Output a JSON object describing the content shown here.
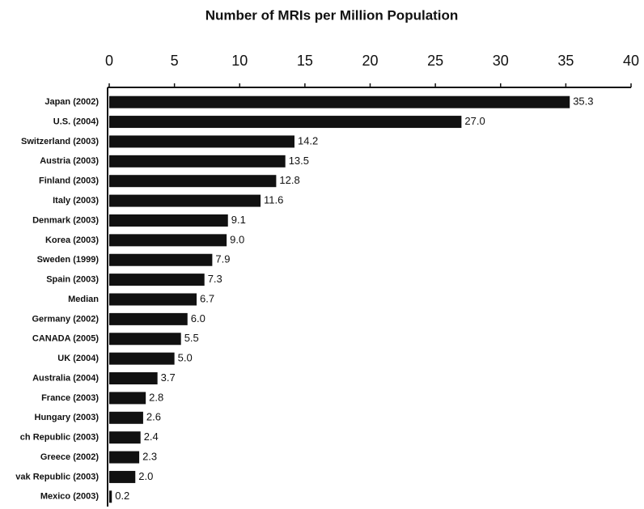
{
  "chart_data": {
    "type": "bar",
    "orientation": "horizontal",
    "title": "Number of MRIs per Million Population",
    "categories": [
      "Japan (2002)",
      "U.S. (2004)",
      "Switzerland (2003)",
      "Austria (2003)",
      "Finland (2003)",
      "Italy (2003)",
      "Denmark (2003)",
      "Korea (2003)",
      "Sweden (1999)",
      "Spain (2003)",
      "Median",
      "Germany (2002)",
      "CANADA (2005)",
      "UK (2004)",
      "Australia (2004)",
      "France (2003)",
      "Hungary (2003)",
      "ch Republic (2003)",
      "Greece (2002)",
      "vak Republic (2003)",
      "Mexico (2003)"
    ],
    "values": [
      35.3,
      27.0,
      14.2,
      13.5,
      12.8,
      11.6,
      9.1,
      9.0,
      7.9,
      7.3,
      6.7,
      6.0,
      5.5,
      5.0,
      3.7,
      2.8,
      2.6,
      2.4,
      2.3,
      2.0,
      0.2
    ],
    "value_labels": [
      "35.3",
      "27.0",
      "14.2",
      "13.5",
      "12.8",
      "11.6",
      "9.1",
      "9.0",
      "7.9",
      "7.3",
      "6.7",
      "6.0",
      "5.5",
      "5.0",
      "3.7",
      "2.8",
      "2.6",
      "2.4",
      "2.3",
      "2.0",
      "0.2"
    ],
    "color": "#111111",
    "xlim": [
      0,
      40
    ],
    "xticks": [
      0,
      5,
      10,
      15,
      20,
      25,
      30,
      35,
      40
    ],
    "grid": false
  }
}
